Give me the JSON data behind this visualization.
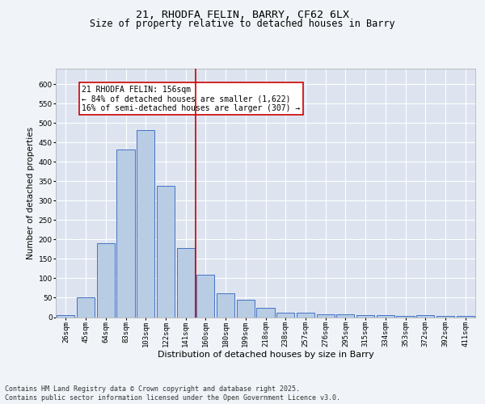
{
  "title": "21, RHODFA FELIN, BARRY, CF62 6LX",
  "subtitle": "Size of property relative to detached houses in Barry",
  "xlabel": "Distribution of detached houses by size in Barry",
  "ylabel": "Number of detached properties",
  "categories": [
    "26sqm",
    "45sqm",
    "64sqm",
    "83sqm",
    "103sqm",
    "122sqm",
    "141sqm",
    "160sqm",
    "180sqm",
    "199sqm",
    "218sqm",
    "238sqm",
    "257sqm",
    "276sqm",
    "295sqm",
    "315sqm",
    "334sqm",
    "353sqm",
    "372sqm",
    "392sqm",
    "411sqm"
  ],
  "values": [
    5,
    50,
    191,
    432,
    481,
    338,
    178,
    109,
    62,
    44,
    24,
    11,
    11,
    8,
    8,
    5,
    5,
    3,
    6,
    3,
    3
  ],
  "bar_color": "#b8cce4",
  "bar_edge_color": "#4472c4",
  "vline_color": "#cc0000",
  "vline_x": 6.5,
  "ylim": [
    0,
    640
  ],
  "yticks": [
    0,
    50,
    100,
    150,
    200,
    250,
    300,
    350,
    400,
    450,
    500,
    550,
    600
  ],
  "background_color": "#dde4f0",
  "grid_color": "#ffffff",
  "annotation_text": "21 RHODFA FELIN: 156sqm\n← 84% of detached houses are smaller (1,622)\n16% of semi-detached houses are larger (307) →",
  "annotation_box_color": "#ffffff",
  "annotation_box_edge_color": "#cc0000",
  "footer_text": "Contains HM Land Registry data © Crown copyright and database right 2025.\nContains public sector information licensed under the Open Government Licence v3.0.",
  "title_fontsize": 9.5,
  "subtitle_fontsize": 8.5,
  "axis_label_fontsize": 8,
  "tick_fontsize": 6.5,
  "annotation_fontsize": 7,
  "ylabel_fontsize": 7.5
}
